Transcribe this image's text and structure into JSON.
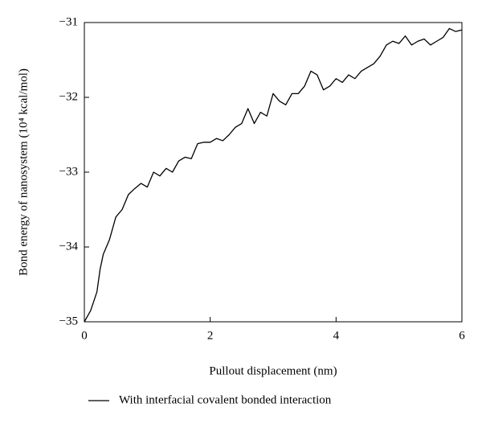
{
  "chart_data": {
    "type": "line",
    "xlabel": "Pullout displacement (nm)",
    "ylabel": "Bond energy of nanosystem (10⁴ kcal/mol)",
    "x": [
      0,
      0.1,
      0.2,
      0.25,
      0.3,
      0.4,
      0.5,
      0.6,
      0.7,
      0.8,
      0.9,
      1.0,
      1.1,
      1.2,
      1.3,
      1.4,
      1.5,
      1.6,
      1.7,
      1.8,
      1.9,
      2.0,
      2.1,
      2.2,
      2.3,
      2.4,
      2.5,
      2.6,
      2.7,
      2.8,
      2.9,
      3.0,
      3.1,
      3.2,
      3.3,
      3.4,
      3.5,
      3.6,
      3.7,
      3.8,
      3.9,
      4.0,
      4.1,
      4.2,
      4.3,
      4.4,
      4.5,
      4.6,
      4.7,
      4.8,
      4.9,
      5.0,
      5.1,
      5.2,
      5.3,
      5.4,
      5.5,
      5.6,
      5.7,
      5.8,
      5.9,
      6.0
    ],
    "series": [
      {
        "name": "With interfacial covalent bonded interaction",
        "color": "#000000",
        "values": [
          -35.0,
          -34.85,
          -34.6,
          -34.3,
          -34.1,
          -33.9,
          -33.6,
          -33.5,
          -33.3,
          -33.22,
          -33.15,
          -33.2,
          -33.0,
          -33.05,
          -32.95,
          -33.0,
          -32.85,
          -32.8,
          -32.82,
          -32.62,
          -32.6,
          -32.6,
          -32.55,
          -32.58,
          -32.5,
          -32.4,
          -32.35,
          -32.15,
          -32.35,
          -32.2,
          -32.25,
          -31.95,
          -32.05,
          -32.1,
          -31.95,
          -31.95,
          -31.85,
          -31.65,
          -31.7,
          -31.9,
          -31.85,
          -31.75,
          -31.8,
          -31.7,
          -31.75,
          -31.65,
          -31.6,
          -31.55,
          -31.45,
          -31.3,
          -31.25,
          -31.28,
          -31.18,
          -31.3,
          -31.25,
          -31.22,
          -31.3,
          -31.25,
          -31.2,
          -31.08,
          -31.12,
          -31.1
        ]
      }
    ],
    "xlim": [
      0,
      6
    ],
    "xticks": [
      0,
      2,
      4,
      6
    ],
    "ylim": [
      -35,
      -31
    ],
    "yticks": [
      {
        "value": -35,
        "label": "−35"
      },
      {
        "value": -34,
        "label": "−34"
      },
      {
        "value": -33,
        "label": "−33"
      },
      {
        "value": -32,
        "label": "−32"
      },
      {
        "value": -31,
        "label": "−31"
      }
    ],
    "legend": "bottom"
  }
}
